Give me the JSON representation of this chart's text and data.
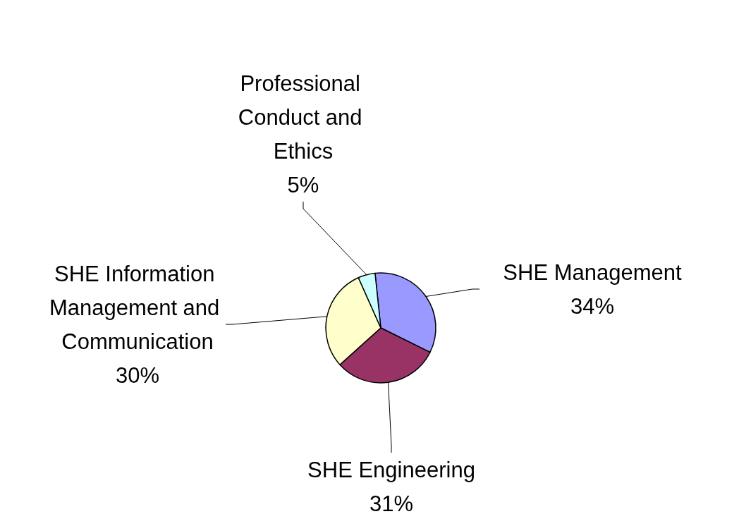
{
  "chart_data": {
    "type": "pie",
    "categories": [
      "SHE Management",
      "SHE Engineering",
      "SHE Information Management and Communication",
      "Professional Conduct and Ethics"
    ],
    "values": [
      34,
      31,
      30,
      5
    ],
    "value_labels": [
      "34%",
      "31%",
      "30%",
      "5%"
    ],
    "colors": [
      "#9999ff",
      "#993366",
      "#ffffcc",
      "#ccffff"
    ]
  }
}
